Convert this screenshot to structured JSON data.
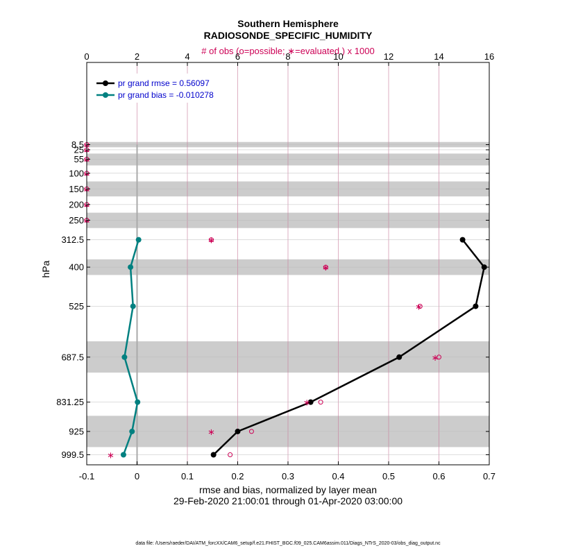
{
  "chart_data": {
    "type": "line",
    "title": "Southern Hemisphere",
    "subtitle": "RADIOSONDE_SPECIFIC_HUMIDITY",
    "top_axis_label": "# of obs (o=possible; ∗=evaluated ) x 1000",
    "xlabel": "rmse and bias, normalized by layer mean",
    "date_range": "29-Feb-2020 21:00:01 through 01-Apr-2020 03:00:00",
    "ylabel": "hPa",
    "footer": "data file: /Users/raeder/DAI/ATM_forcXX/CAM6_setup/f.e21.FHIST_BGC.f09_025.CAM6assim.011/Diags_NTrS_2020-03/obs_diag_output.nc",
    "xlim": [
      -0.1,
      0.7
    ],
    "x_ticks": [
      -0.1,
      0,
      0.1,
      0.2,
      0.3,
      0.4,
      0.5,
      0.6,
      0.7
    ],
    "x_tick_labels": [
      "-0.1",
      "0",
      "0.1",
      "0.2",
      "0.3",
      "0.4",
      "0.5",
      "0.6",
      "0.7"
    ],
    "top_xlim": [
      0,
      16
    ],
    "top_ticks": [
      0,
      2,
      4,
      6,
      8,
      10,
      12,
      14,
      16
    ],
    "top_tick_labels": [
      "0",
      "2",
      "4",
      "6",
      "8",
      "10",
      "12",
      "14",
      "16"
    ],
    "levels": [
      8.5,
      25,
      55,
      100,
      150,
      200,
      250,
      312.5,
      400,
      525,
      687.5,
      831.25,
      925,
      999.5
    ],
    "level_labels": [
      "8.5",
      "25",
      "55",
      "100",
      "150",
      "200",
      "250",
      "312.5",
      "400",
      "525",
      "687.5",
      "831.25",
      "925",
      "999.5"
    ],
    "shaded_layers_hPa": [
      [
        0,
        17
      ],
      [
        37,
        75
      ],
      [
        126,
        174
      ],
      [
        226,
        275
      ],
      [
        375,
        425
      ],
      [
        637,
        737
      ],
      [
        875,
        975
      ]
    ],
    "series": [
      {
        "name": "pr grand rmse = 0.56097",
        "color": "#000000",
        "levels": [
          312.5,
          400,
          525,
          687.5,
          831.25,
          925,
          999.5
        ],
        "values": [
          0.647,
          0.69,
          0.673,
          0.521,
          0.345,
          0.2,
          0.152
        ]
      },
      {
        "name": "pr grand bias = -0.010278",
        "color": "#008080",
        "levels": [
          312.5,
          400,
          525,
          687.5,
          831.25,
          925,
          999.5
        ],
        "values": [
          0.003,
          -0.013,
          -0.008,
          -0.025,
          0.001,
          -0.01,
          -0.027
        ]
      }
    ],
    "obs_possible_thousands": {
      "levels": [
        8.5,
        25,
        55,
        100,
        150,
        200,
        250,
        312.5,
        400,
        525,
        687.5,
        831.25,
        925,
        999.5
      ],
      "values": [
        0,
        0,
        0,
        0,
        0,
        0,
        0,
        4.95,
        9.5,
        13.25,
        14.0,
        9.3,
        6.55,
        5.7
      ]
    },
    "obs_evaluated_thousands": {
      "levels": [
        8.5,
        25,
        55,
        100,
        150,
        200,
        250,
        312.5,
        400,
        525,
        687.5,
        831.25,
        925,
        999.5
      ],
      "values": [
        0,
        0,
        0,
        0,
        0,
        0,
        0,
        4.95,
        9.5,
        13.2,
        13.85,
        8.75,
        4.95,
        0.95
      ]
    },
    "colors": {
      "obs": "#cc0055",
      "legend_text": "#0000cc",
      "shade": "#cccccc",
      "grid_top": "#c87a9a",
      "grid_bottom": "#bbbbbb",
      "zero_line": "#aaaaaa"
    }
  }
}
